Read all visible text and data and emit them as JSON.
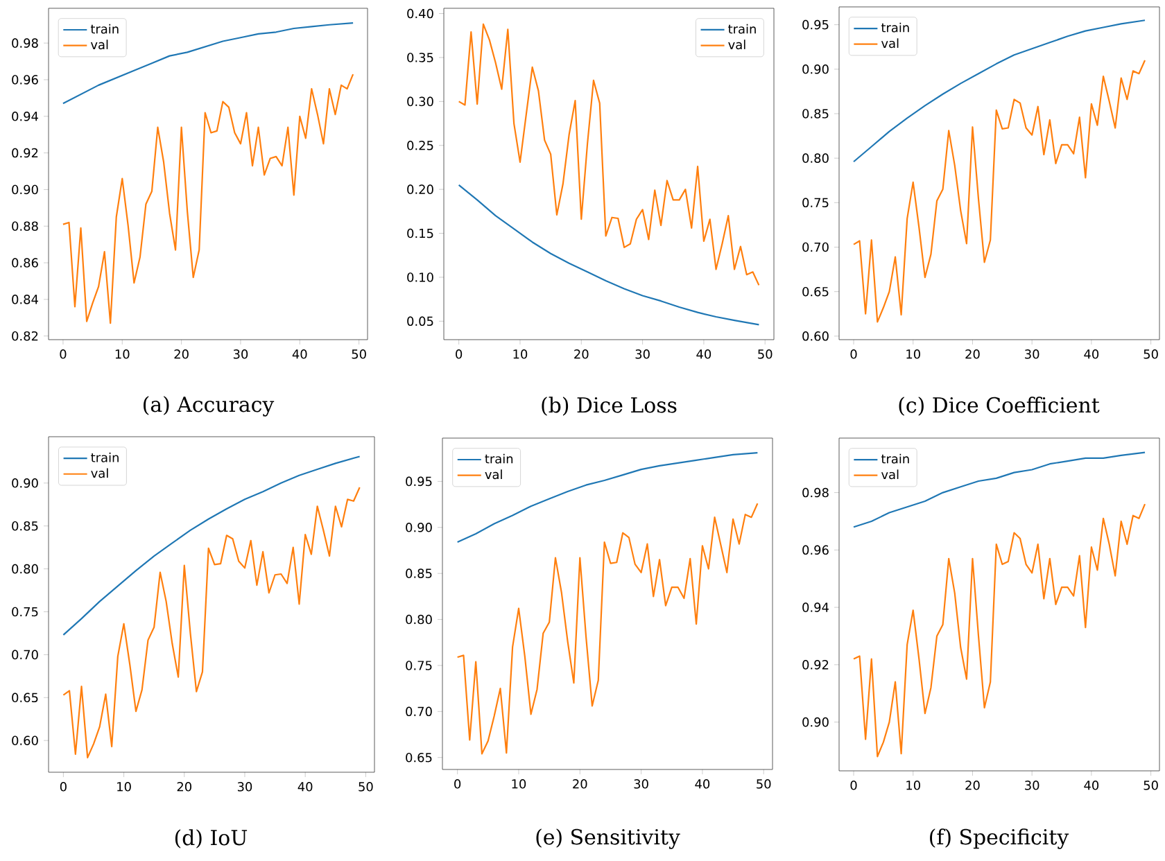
{
  "chart_data": [
    {
      "type": "line",
      "title": "(a) Accuracy",
      "x": [
        0,
        1,
        2,
        3,
        4,
        5,
        6,
        7,
        8,
        9,
        10,
        11,
        12,
        13,
        14,
        15,
        16,
        17,
        18,
        19,
        20,
        21,
        22,
        23,
        24,
        25,
        26,
        27,
        28,
        29,
        30,
        31,
        32,
        33,
        34,
        35,
        36,
        37,
        38,
        39,
        40,
        41,
        42,
        43,
        44,
        45,
        46,
        47,
        48,
        49
      ],
      "xlim": [
        -2.45,
        51.45
      ],
      "xticks": [
        0,
        10,
        20,
        30,
        40,
        50
      ],
      "ylim": [
        0.818,
        0.999
      ],
      "yticks": [
        0.82,
        0.84,
        0.86,
        0.88,
        {
          "value": 0.9,
          "label": "0.90"
        },
        0.92,
        0.94,
        0.96,
        0.98
      ],
      "legend": "top left",
      "series": [
        {
          "name": "train",
          "color": "#1f77b4",
          "x": [
            0,
            3,
            6,
            9,
            12,
            15,
            18,
            21,
            24,
            27,
            30,
            33,
            36,
            39,
            42,
            45,
            49
          ],
          "values": [
            0.947,
            0.952,
            0.957,
            0.961,
            0.965,
            0.969,
            0.973,
            0.975,
            0.978,
            0.981,
            0.983,
            0.985,
            0.986,
            0.988,
            0.989,
            0.99,
            0.991
          ]
        },
        {
          "name": "val",
          "color": "#ff7f0e",
          "values": [
            0.881,
            0.882,
            0.836,
            0.879,
            0.828,
            0.838,
            0.847,
            0.866,
            0.827,
            0.885,
            0.906,
            0.88,
            0.849,
            0.863,
            0.892,
            0.899,
            0.934,
            0.915,
            0.887,
            0.867,
            0.934,
            0.888,
            0.852,
            0.867,
            0.942,
            0.931,
            0.932,
            0.948,
            0.945,
            0.931,
            0.925,
            0.942,
            0.913,
            0.934,
            0.908,
            0.917,
            0.918,
            0.913,
            0.934,
            0.897,
            0.94,
            0.928,
            0.955,
            0.941,
            0.925,
            0.955,
            0.941,
            0.957,
            0.955,
            0.963
          ]
        }
      ]
    },
    {
      "type": "line",
      "title": "(b) Dice Loss",
      "x": [
        0,
        1,
        2,
        3,
        4,
        5,
        6,
        7,
        8,
        9,
        10,
        11,
        12,
        13,
        14,
        15,
        16,
        17,
        18,
        19,
        20,
        21,
        22,
        23,
        24,
        25,
        26,
        27,
        28,
        29,
        30,
        31,
        32,
        33,
        34,
        35,
        36,
        37,
        38,
        39,
        40,
        41,
        42,
        43,
        44,
        45,
        46,
        47,
        48,
        49
      ],
      "xlim": [
        -2.45,
        51.45
      ],
      "xticks": [
        0,
        10,
        20,
        30,
        40,
        50
      ],
      "ylim": [
        0.029,
        0.406
      ],
      "yticks": [
        0.05,
        {
          "value": 0.1,
          "label": "0.10"
        },
        0.15,
        {
          "value": 0.2,
          "label": "0.20"
        },
        0.25,
        {
          "value": 0.3,
          "label": "0.30"
        },
        0.35,
        {
          "value": 0.4,
          "label": "0.40"
        }
      ],
      "legend": "top right",
      "series": [
        {
          "name": "train",
          "color": "#1f77b4",
          "x": [
            0,
            3,
            6,
            9,
            12,
            15,
            18,
            21,
            24,
            27,
            30,
            33,
            36,
            39,
            42,
            45,
            49
          ],
          "values": [
            0.205,
            0.188,
            0.17,
            0.155,
            0.14,
            0.127,
            0.116,
            0.106,
            0.096,
            0.087,
            0.079,
            0.073,
            0.066,
            0.06,
            0.055,
            0.051,
            0.046
          ]
        },
        {
          "name": "val",
          "color": "#ff7f0e",
          "values": [
            0.3,
            0.296,
            0.379,
            0.297,
            0.388,
            0.37,
            0.344,
            0.314,
            0.382,
            0.275,
            0.231,
            0.285,
            0.339,
            0.312,
            0.256,
            0.24,
            0.171,
            0.206,
            0.262,
            0.301,
            0.166,
            0.252,
            0.324,
            0.298,
            0.147,
            0.168,
            0.167,
            0.134,
            0.138,
            0.166,
            0.177,
            0.143,
            0.199,
            0.159,
            0.21,
            0.188,
            0.188,
            0.2,
            0.156,
            0.226,
            0.141,
            0.166,
            0.109,
            0.138,
            0.17,
            0.109,
            0.135,
            0.103,
            0.106,
            0.091
          ]
        }
      ]
    },
    {
      "type": "line",
      "title": "(c) Dice Coefficient",
      "x": [
        0,
        1,
        2,
        3,
        4,
        5,
        6,
        7,
        8,
        9,
        10,
        11,
        12,
        13,
        14,
        15,
        16,
        17,
        18,
        19,
        20,
        21,
        22,
        23,
        24,
        25,
        26,
        27,
        28,
        29,
        30,
        31,
        32,
        33,
        34,
        35,
        36,
        37,
        38,
        39,
        40,
        41,
        42,
        43,
        44,
        45,
        46,
        47,
        48,
        49
      ],
      "xlim": [
        -2.45,
        51.45
      ],
      "xticks": [
        0,
        10,
        20,
        30,
        40,
        50
      ],
      "ylim": [
        0.596,
        0.97
      ],
      "yticks": [
        {
          "value": 0.6,
          "label": "0.60"
        },
        0.65,
        {
          "value": 0.7,
          "label": "0.70"
        },
        0.75,
        {
          "value": 0.8,
          "label": "0.80"
        },
        0.85,
        {
          "value": 0.9,
          "label": "0.90"
        },
        0.95
      ],
      "legend": "top left",
      "series": [
        {
          "name": "train",
          "color": "#1f77b4",
          "x": [
            0,
            3,
            6,
            9,
            12,
            15,
            18,
            21,
            24,
            27,
            30,
            33,
            36,
            39,
            42,
            45,
            49
          ],
          "values": [
            0.796,
            0.813,
            0.83,
            0.845,
            0.859,
            0.872,
            0.884,
            0.895,
            0.906,
            0.916,
            0.923,
            0.93,
            0.937,
            0.943,
            0.947,
            0.951,
            0.955
          ]
        },
        {
          "name": "val",
          "color": "#ff7f0e",
          "values": [
            0.703,
            0.707,
            0.625,
            0.708,
            0.616,
            0.632,
            0.65,
            0.689,
            0.624,
            0.732,
            0.773,
            0.722,
            0.666,
            0.692,
            0.752,
            0.765,
            0.831,
            0.792,
            0.741,
            0.704,
            0.835,
            0.754,
            0.683,
            0.708,
            0.854,
            0.833,
            0.834,
            0.866,
            0.862,
            0.834,
            0.826,
            0.858,
            0.804,
            0.843,
            0.794,
            0.815,
            0.815,
            0.805,
            0.846,
            0.778,
            0.861,
            0.837,
            0.892,
            0.864,
            0.834,
            0.89,
            0.866,
            0.898,
            0.895,
            0.91
          ]
        }
      ]
    },
    {
      "type": "line",
      "title": "(d) IoU",
      "x": [
        0,
        1,
        2,
        3,
        4,
        5,
        6,
        7,
        8,
        9,
        10,
        11,
        12,
        13,
        14,
        15,
        16,
        17,
        18,
        19,
        20,
        21,
        22,
        23,
        24,
        25,
        26,
        27,
        28,
        29,
        30,
        31,
        32,
        33,
        34,
        35,
        36,
        37,
        38,
        39,
        40,
        41,
        42,
        43,
        44,
        45,
        46,
        47,
        48,
        49
      ],
      "xlim": [
        -2.45,
        51.45
      ],
      "xticks": [
        0,
        10,
        20,
        30,
        40,
        50
      ],
      "ylim": [
        0.563,
        0.954
      ],
      "yticks": [
        {
          "value": 0.6,
          "label": "0.60"
        },
        0.65,
        {
          "value": 0.7,
          "label": "0.70"
        },
        0.75,
        {
          "value": 0.8,
          "label": "0.80"
        },
        0.85,
        {
          "value": 0.9,
          "label": "0.90"
        }
      ],
      "legend": "top left",
      "series": [
        {
          "name": "train",
          "color": "#1f77b4",
          "x": [
            0,
            3,
            6,
            9,
            12,
            15,
            18,
            21,
            24,
            27,
            30,
            33,
            36,
            39,
            42,
            45,
            49
          ],
          "values": [
            0.723,
            0.742,
            0.762,
            0.78,
            0.798,
            0.815,
            0.83,
            0.845,
            0.858,
            0.87,
            0.881,
            0.89,
            0.9,
            0.909,
            0.916,
            0.923,
            0.931
          ]
        },
        {
          "name": "val",
          "color": "#ff7f0e",
          "values": [
            0.653,
            0.658,
            0.584,
            0.663,
            0.58,
            0.596,
            0.616,
            0.654,
            0.593,
            0.698,
            0.736,
            0.688,
            0.634,
            0.659,
            0.717,
            0.732,
            0.796,
            0.762,
            0.713,
            0.674,
            0.804,
            0.725,
            0.657,
            0.68,
            0.824,
            0.805,
            0.806,
            0.839,
            0.835,
            0.809,
            0.801,
            0.833,
            0.781,
            0.82,
            0.772,
            0.793,
            0.794,
            0.783,
            0.825,
            0.759,
            0.84,
            0.817,
            0.873,
            0.845,
            0.815,
            0.873,
            0.849,
            0.881,
            0.879,
            0.895
          ]
        }
      ]
    },
    {
      "type": "line",
      "title": "(e) Sensitivity",
      "x": [
        0,
        1,
        2,
        3,
        4,
        5,
        6,
        7,
        8,
        9,
        10,
        11,
        12,
        13,
        14,
        15,
        16,
        17,
        18,
        19,
        20,
        21,
        22,
        23,
        24,
        25,
        26,
        27,
        28,
        29,
        30,
        31,
        32,
        33,
        34,
        35,
        36,
        37,
        38,
        39,
        40,
        41,
        42,
        43,
        44,
        45,
        46,
        47,
        48,
        49
      ],
      "xlim": [
        -2.45,
        51.45
      ],
      "xticks": [
        0,
        10,
        20,
        30,
        40,
        50
      ],
      "ylim": [
        0.637,
        0.997
      ],
      "yticks": [
        0.65,
        {
          "value": 0.7,
          "label": "0.70"
        },
        0.75,
        {
          "value": 0.8,
          "label": "0.80"
        },
        0.85,
        {
          "value": 0.9,
          "label": "0.90"
        },
        0.95
      ],
      "legend": "top left",
      "series": [
        {
          "name": "train",
          "color": "#1f77b4",
          "x": [
            0,
            3,
            6,
            9,
            12,
            15,
            18,
            21,
            24,
            27,
            30,
            33,
            36,
            39,
            42,
            45,
            49
          ],
          "values": [
            0.884,
            0.893,
            0.904,
            0.913,
            0.923,
            0.931,
            0.939,
            0.946,
            0.951,
            0.957,
            0.963,
            0.967,
            0.97,
            0.973,
            0.976,
            0.979,
            0.981
          ]
        },
        {
          "name": "val",
          "color": "#ff7f0e",
          "values": [
            0.759,
            0.761,
            0.669,
            0.754,
            0.654,
            0.668,
            0.695,
            0.725,
            0.655,
            0.77,
            0.812,
            0.76,
            0.697,
            0.724,
            0.785,
            0.797,
            0.867,
            0.829,
            0.776,
            0.731,
            0.867,
            0.781,
            0.706,
            0.734,
            0.884,
            0.861,
            0.862,
            0.894,
            0.889,
            0.86,
            0.851,
            0.882,
            0.825,
            0.865,
            0.815,
            0.835,
            0.835,
            0.823,
            0.866,
            0.795,
            0.88,
            0.855,
            0.911,
            0.881,
            0.851,
            0.909,
            0.882,
            0.914,
            0.911,
            0.926
          ]
        }
      ]
    },
    {
      "type": "line",
      "title": "(f) Specificity",
      "x": [
        0,
        1,
        2,
        3,
        4,
        5,
        6,
        7,
        8,
        9,
        10,
        11,
        12,
        13,
        14,
        15,
        16,
        17,
        18,
        19,
        20,
        21,
        22,
        23,
        24,
        25,
        26,
        27,
        28,
        29,
        30,
        31,
        32,
        33,
        34,
        35,
        36,
        37,
        38,
        39,
        40,
        41,
        42,
        43,
        44,
        45,
        46,
        47,
        48,
        49
      ],
      "xlim": [
        -2.45,
        51.45
      ],
      "xticks": [
        0,
        10,
        20,
        30,
        40,
        50
      ],
      "ylim": [
        0.883,
        0.999
      ],
      "yticks": [
        {
          "value": 0.9,
          "label": "0.90"
        },
        0.92,
        0.94,
        0.96,
        0.98
      ],
      "legend": "top left",
      "series": [
        {
          "name": "train",
          "color": "#1f77b4",
          "x": [
            0,
            3,
            6,
            9,
            12,
            15,
            18,
            21,
            24,
            27,
            30,
            33,
            36,
            39,
            42,
            45,
            49
          ],
          "values": [
            0.968,
            0.97,
            0.973,
            0.975,
            0.977,
            0.98,
            0.982,
            0.984,
            0.985,
            0.987,
            0.988,
            0.99,
            0.991,
            0.992,
            0.992,
            0.993,
            0.994
          ]
        },
        {
          "name": "val",
          "color": "#ff7f0e",
          "values": [
            0.922,
            0.923,
            0.894,
            0.922,
            0.888,
            0.893,
            0.9,
            0.914,
            0.889,
            0.927,
            0.939,
            0.922,
            0.903,
            0.912,
            0.93,
            0.934,
            0.957,
            0.945,
            0.926,
            0.915,
            0.957,
            0.93,
            0.905,
            0.914,
            0.962,
            0.955,
            0.956,
            0.966,
            0.964,
            0.955,
            0.952,
            0.962,
            0.943,
            0.957,
            0.941,
            0.947,
            0.947,
            0.944,
            0.958,
            0.933,
            0.961,
            0.953,
            0.971,
            0.962,
            0.951,
            0.97,
            0.962,
            0.972,
            0.971,
            0.976
          ]
        }
      ]
    }
  ]
}
